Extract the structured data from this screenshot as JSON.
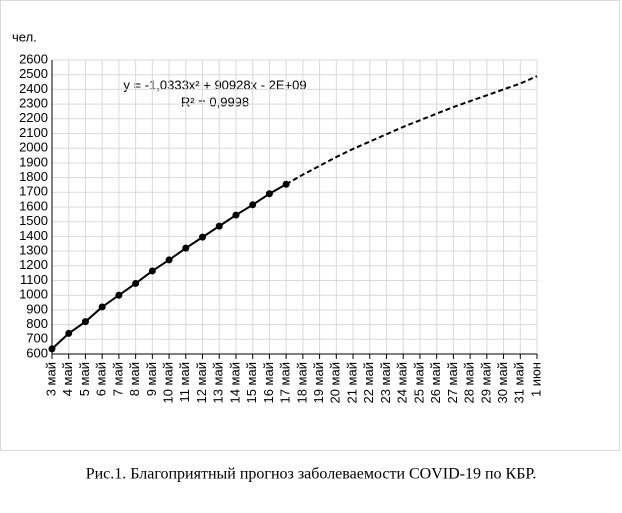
{
  "chart_data": {
    "type": "line",
    "y_label": "чел.",
    "annotations": [
      "y = -1,0333x² + 90928x - 2E+09",
      "R² = 0,9998"
    ],
    "caption": "Рис.1. Благоприятный прогноз заболеваемости COVID-19 по КБР.",
    "categories": [
      "3 май",
      "4 май",
      "5 май",
      "6 май",
      "7 май",
      "8 май",
      "9 май",
      "10 май",
      "11 май",
      "12 май",
      "13 май",
      "14 май",
      "15 май",
      "16 май",
      "17 май",
      "18 май",
      "19 май",
      "20 май",
      "21 май",
      "22 май",
      "23 май",
      "24 май",
      "25 май",
      "26 май",
      "27 май",
      "28 май",
      "29 май",
      "30 май",
      "31 май",
      "1 июн"
    ],
    "series": [
      {
        "color": "#000000",
        "dash": false,
        "markers": true,
        "values": [
          635,
          740,
          820,
          920,
          1000,
          1080,
          1165,
          1240,
          1320,
          1395,
          1470,
          1545,
          1615,
          1690,
          1755,
          null,
          null,
          null,
          null,
          null,
          null,
          null,
          null,
          null,
          null,
          null,
          null,
          null,
          null,
          null
        ]
      },
      {
        "color": "#000000",
        "dash": true,
        "markers": false,
        "values": [
          null,
          null,
          null,
          null,
          null,
          null,
          null,
          null,
          null,
          null,
          null,
          null,
          null,
          null,
          1755,
          1820,
          1880,
          1940,
          1995,
          2045,
          2095,
          2145,
          2190,
          2235,
          2280,
          2320,
          2360,
          2400,
          2440,
          2490
        ]
      }
    ],
    "ylim": [
      600,
      2600
    ],
    "yticks": [
      600,
      700,
      800,
      900,
      1000,
      1100,
      1200,
      1300,
      1400,
      1500,
      1600,
      1700,
      1800,
      1900,
      2000,
      2100,
      2200,
      2300,
      2400,
      2500,
      2600
    ],
    "grid": true
  }
}
